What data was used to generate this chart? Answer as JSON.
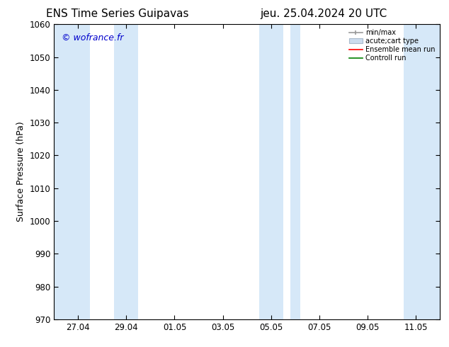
{
  "title_left": "ENS Time Series Guipavas",
  "title_right": "jeu. 25.04.2024 20 UTC",
  "ylabel": "Surface Pressure (hPa)",
  "ylim": [
    970,
    1060
  ],
  "yticks": [
    970,
    980,
    990,
    1000,
    1010,
    1020,
    1030,
    1040,
    1050,
    1060
  ],
  "xlim_start": 0.0,
  "xlim_end": 16.0,
  "xtick_labels": [
    "27.04",
    "29.04",
    "01.05",
    "03.05",
    "05.05",
    "07.05",
    "09.05",
    "11.05"
  ],
  "xtick_positions": [
    1,
    3,
    5,
    7,
    9,
    11,
    13,
    15
  ],
  "background_color": "#ffffff",
  "plot_bg_color": "#ffffff",
  "shaded_bands": [
    {
      "x_start": 0.0,
      "x_end": 1.5
    },
    {
      "x_start": 2.5,
      "x_end": 3.5
    },
    {
      "x_start": 8.5,
      "x_end": 9.5
    },
    {
      "x_start": 9.8,
      "x_end": 10.2
    },
    {
      "x_start": 14.5,
      "x_end": 16.0
    }
  ],
  "shade_color": "#d6e8f8",
  "watermark": "© wofrance.fr",
  "watermark_color": "#0000cc",
  "legend_items": [
    {
      "label": "min/max",
      "color": "#a0a0a0",
      "type": "errorbar"
    },
    {
      "label": "acute;cart type",
      "color": "#c0d0e0",
      "type": "box"
    },
    {
      "label": "Ensemble mean run",
      "color": "#ff0000",
      "type": "line"
    },
    {
      "label": "Controll run",
      "color": "#008000",
      "type": "line"
    }
  ],
  "figsize": [
    6.34,
    4.9
  ],
  "dpi": 100
}
